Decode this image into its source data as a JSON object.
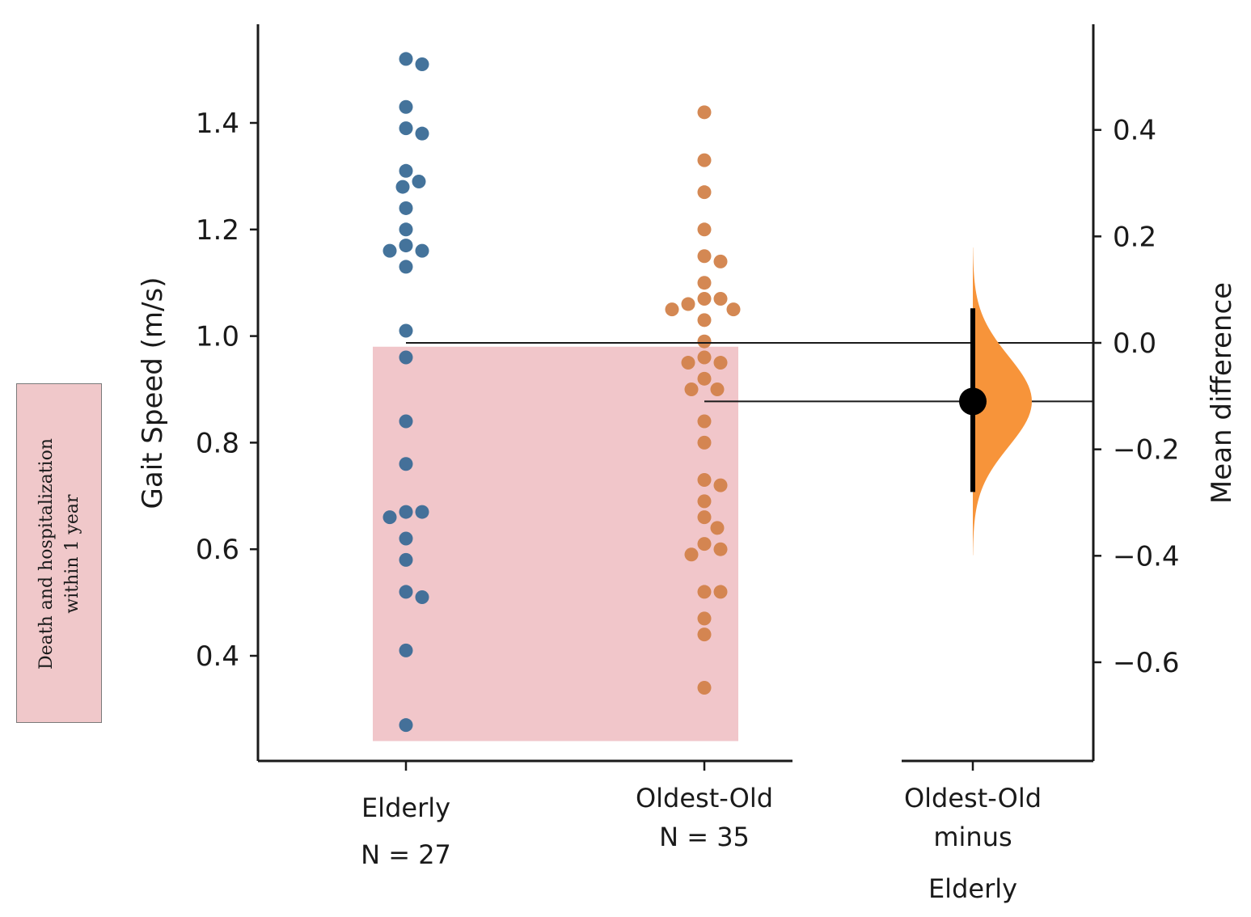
{
  "chart_data": {
    "type": "scatter",
    "subtype": "gardner-altman estimation plot",
    "ylabel": "Gait Speed (m/s)",
    "ylabel_right": "Mean difference",
    "ylim": [
      0.2,
      1.6
    ],
    "yticks": [
      0.4,
      0.6,
      0.8,
      1.0,
      1.2,
      1.4
    ],
    "ytick_labels": [
      "0.4",
      "0.6",
      "0.8",
      "1.0",
      "1.2",
      "1.4"
    ],
    "ylim_right": [
      -0.78,
      0.62
    ],
    "yticks_right": [
      -0.6,
      -0.4,
      -0.2,
      0.0,
      0.2,
      0.4
    ],
    "ytick_labels_right": [
      "−0.6",
      "−0.4",
      "−0.2",
      "0.0",
      "0.2",
      "0.4"
    ],
    "groups": [
      {
        "name": "Elderly",
        "label_line1": "Elderly",
        "label_line2": "N = 27",
        "color": "#3a6b96",
        "values": [
          1.52,
          1.51,
          1.43,
          1.39,
          1.38,
          1.31,
          1.29,
          1.28,
          1.24,
          1.2,
          1.17,
          1.16,
          1.16,
          1.13,
          1.01,
          0.96,
          0.84,
          0.76,
          0.67,
          0.67,
          0.66,
          0.62,
          0.58,
          0.52,
          0.51,
          0.41,
          0.27
        ]
      },
      {
        "name": "Oldest-Old",
        "label_line1": "Oldest-Old",
        "label_line2": "N = 35",
        "color": "#d2824a",
        "values": [
          1.42,
          1.33,
          1.27,
          1.2,
          1.15,
          1.14,
          1.1,
          1.07,
          1.07,
          1.06,
          1.05,
          1.05,
          1.03,
          0.99,
          0.96,
          0.95,
          0.95,
          0.92,
          0.9,
          0.9,
          0.84,
          0.8,
          0.73,
          0.72,
          0.69,
          0.66,
          0.64,
          0.61,
          0.6,
          0.59,
          0.52,
          0.52,
          0.47,
          0.44,
          0.34
        ]
      }
    ],
    "contrast": {
      "label_line1": "Oldest-Old",
      "label_line2": "minus",
      "label_line3": "Elderly",
      "mean_difference": -0.11,
      "ci": [
        -0.28,
        0.065
      ],
      "color": "#f7943a"
    },
    "shaded_region": {
      "y_range": [
        0.24,
        0.98
      ],
      "color": "#e8a0a6"
    },
    "legend": {
      "text": "Death and hospitalization\nwithin 1 year",
      "color": "#f0c8ca"
    }
  }
}
